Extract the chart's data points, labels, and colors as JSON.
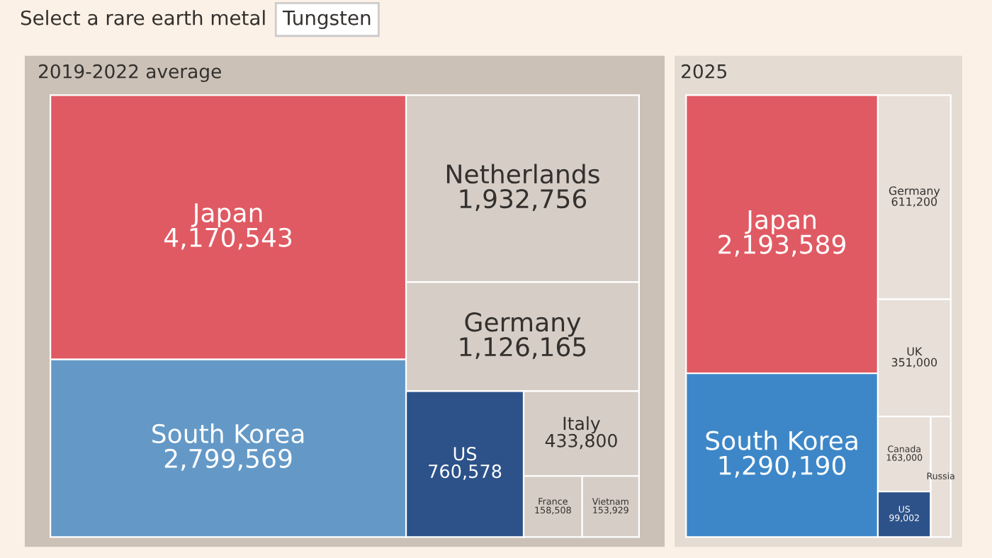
{
  "chart_data": [
    {
      "type": "other",
      "title": "2019-2022 average",
      "annotations": [
        "Select a rare earth metal",
        "Tungsten"
      ],
      "categories": [
        "Japan",
        "South Korea",
        "Netherlands",
        "Germany",
        "US",
        "Italy",
        "France",
        "Vietnam"
      ],
      "values": [
        4170543,
        2799569,
        1932756,
        1126165,
        760578,
        433800,
        158508,
        153929
      ],
      "value_labels": [
        "4,170,543",
        "2,799,569",
        "1,932,756",
        "1,126,165",
        "760,578",
        "433,800",
        "158,508",
        "153,929"
      ],
      "colors": [
        "#e05a63",
        "#6499c7",
        "#d6cec6",
        "#d6cec6",
        "#2c5289",
        "#d6cec6",
        "#d6cec6",
        "#d6cec6"
      ]
    },
    {
      "type": "other",
      "title": "2025",
      "categories": [
        "Japan",
        "South Korea",
        "Germany",
        "UK",
        "Canada",
        "US",
        "Russia"
      ],
      "values": [
        2193589,
        1290190,
        611200,
        351000,
        163000,
        99002,
        null
      ],
      "value_labels": [
        "2,193,589",
        "1,290,190",
        "611,200",
        "351,000",
        "163,000",
        "99,002",
        null
      ],
      "colors": [
        "#e05a63",
        "#3d87c8",
        "#e7dfd8",
        "#e7dfd8",
        "#e7dfd8",
        "#2c5289",
        "#e7dfd8"
      ]
    }
  ]
}
